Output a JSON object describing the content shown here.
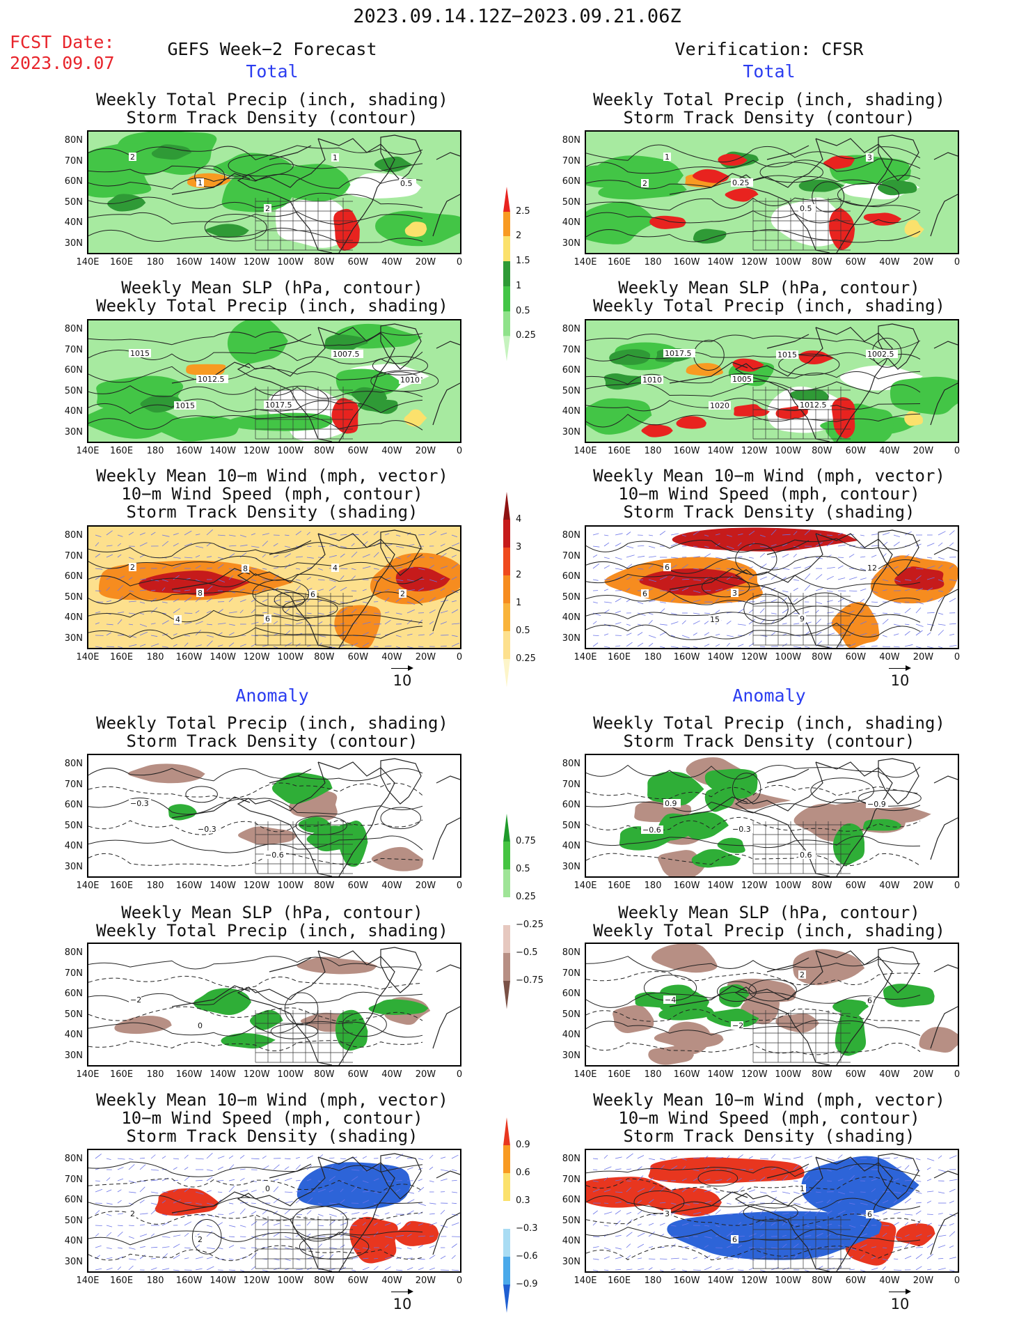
{
  "header": {
    "date_range": "2023.09.14.12Z−2023.09.21.06Z",
    "fcst_label": "FCST Date:",
    "fcst_date": "2023.09.07",
    "left_title": "GEFS Week−2 Forecast",
    "right_title": "Verification: CFSR",
    "section_total": "Total",
    "section_anomaly": "Anomaly"
  },
  "panel_titles": {
    "precip_storm": [
      "Weekly Total Precip (inch, shading)",
      "Storm Track Density (contour)"
    ],
    "slp_precip": [
      "Weekly Mean SLP (hPa, contour)",
      "Weekly Total Precip (inch, shading)"
    ],
    "wind": [
      "Weekly Mean 10−m Wind (mph, vector)",
      "10−m Wind Speed (mph, contour)",
      "Storm Track Density (shading)"
    ]
  },
  "axes": {
    "lat_labels": [
      "80N",
      "70N",
      "60N",
      "50N",
      "40N",
      "30N"
    ],
    "lon_labels": [
      "140E",
      "160E",
      "180",
      "160W",
      "140W",
      "120W",
      "100W",
      "80W",
      "60W",
      "40W",
      "20W",
      "0"
    ]
  },
  "vector_ref": "10",
  "colorbars": {
    "precip_total": {
      "labels": [
        "2.5",
        "2",
        "1.5",
        "1",
        "0.5",
        "0.25"
      ],
      "colors": [
        "#e8231f",
        "#f89a22",
        "#fbe16c",
        "#2f9a36",
        "#43c546",
        "#8fe28a",
        "#c6f3bf"
      ]
    },
    "storm_total": {
      "labels": [
        "4",
        "3",
        "2",
        "1",
        "0.5",
        "0.25"
      ],
      "colors": [
        "#8f1212",
        "#c61b1b",
        "#ef4a1d",
        "#f68c1f",
        "#f9b33a",
        "#fde08d",
        "#fdf5c9"
      ]
    },
    "precip_anom": {
      "labels": [
        "0.75",
        "0.5",
        "0.25",
        "−0.25",
        "−0.5",
        "−0.75"
      ],
      "colors": [
        "#1f9a2b",
        "#45c441",
        "#9fe497",
        "#ffffff",
        "#e6c8bf",
        "#b78f84",
        "#7a5146"
      ]
    },
    "storm_anom": {
      "labels": [
        "0.9",
        "0.6",
        "0.3",
        "−0.3",
        "−0.6",
        "−0.9"
      ],
      "colors": [
        "#e8361f",
        "#f89a22",
        "#fbe16c",
        "#ffffff",
        "#a9dcf3",
        "#4aa9ea",
        "#1f5fd1"
      ]
    }
  },
  "map_colors": {
    "land_line": "#222222",
    "precip_light": "#a7eaa0",
    "precip_mid": "#43c546",
    "precip_dark": "#2f9a36",
    "precip_yellow": "#fbe16c",
    "precip_orange": "#f89a22",
    "precip_red": "#e8231f",
    "storm_pale": "#fde08d",
    "storm_orange": "#f68c1f",
    "storm_red": "#c61b1b",
    "anom_brown": "#b78f84",
    "anom_green": "#2fae37",
    "anom_blue": "#2d64d8",
    "vector_blue": "#6b74e8"
  },
  "contour_labels": {
    "fcst_precip": [
      "2",
      "1",
      "2",
      "1",
      "0.5"
    ],
    "ver_precip": [
      "1",
      "0.25",
      "0.5",
      "3",
      "2"
    ],
    "fcst_slp": [
      "1015",
      "1012.5",
      "1017.5",
      "1007.5",
      "1010",
      "1015"
    ],
    "ver_slp": [
      "1017.5",
      "1005",
      "1012.5",
      "1002.5",
      "1010",
      "1020",
      "1015"
    ],
    "fcst_wind": [
      "2",
      "8",
      "6",
      "4",
      "2",
      "4",
      "8",
      "6"
    ],
    "ver_wind": [
      "6",
      "3",
      "9",
      "12",
      "6",
      "15"
    ],
    "fcst_anom_precip": [
      "−0.3",
      "−0.3",
      "−0.6"
    ],
    "ver_anom_precip": [
      "0.9",
      "−0.3",
      "0.6",
      "−0.9",
      "−0.6"
    ],
    "fcst_anom_slp": [
      "−2",
      "0"
    ],
    "ver_anom_slp": [
      "−4",
      "−2",
      "2",
      "6"
    ],
    "fcst_anom_wind": [
      "2",
      "2",
      "0"
    ],
    "ver_anom_wind": [
      "3",
      "6",
      "1",
      "6"
    ]
  }
}
